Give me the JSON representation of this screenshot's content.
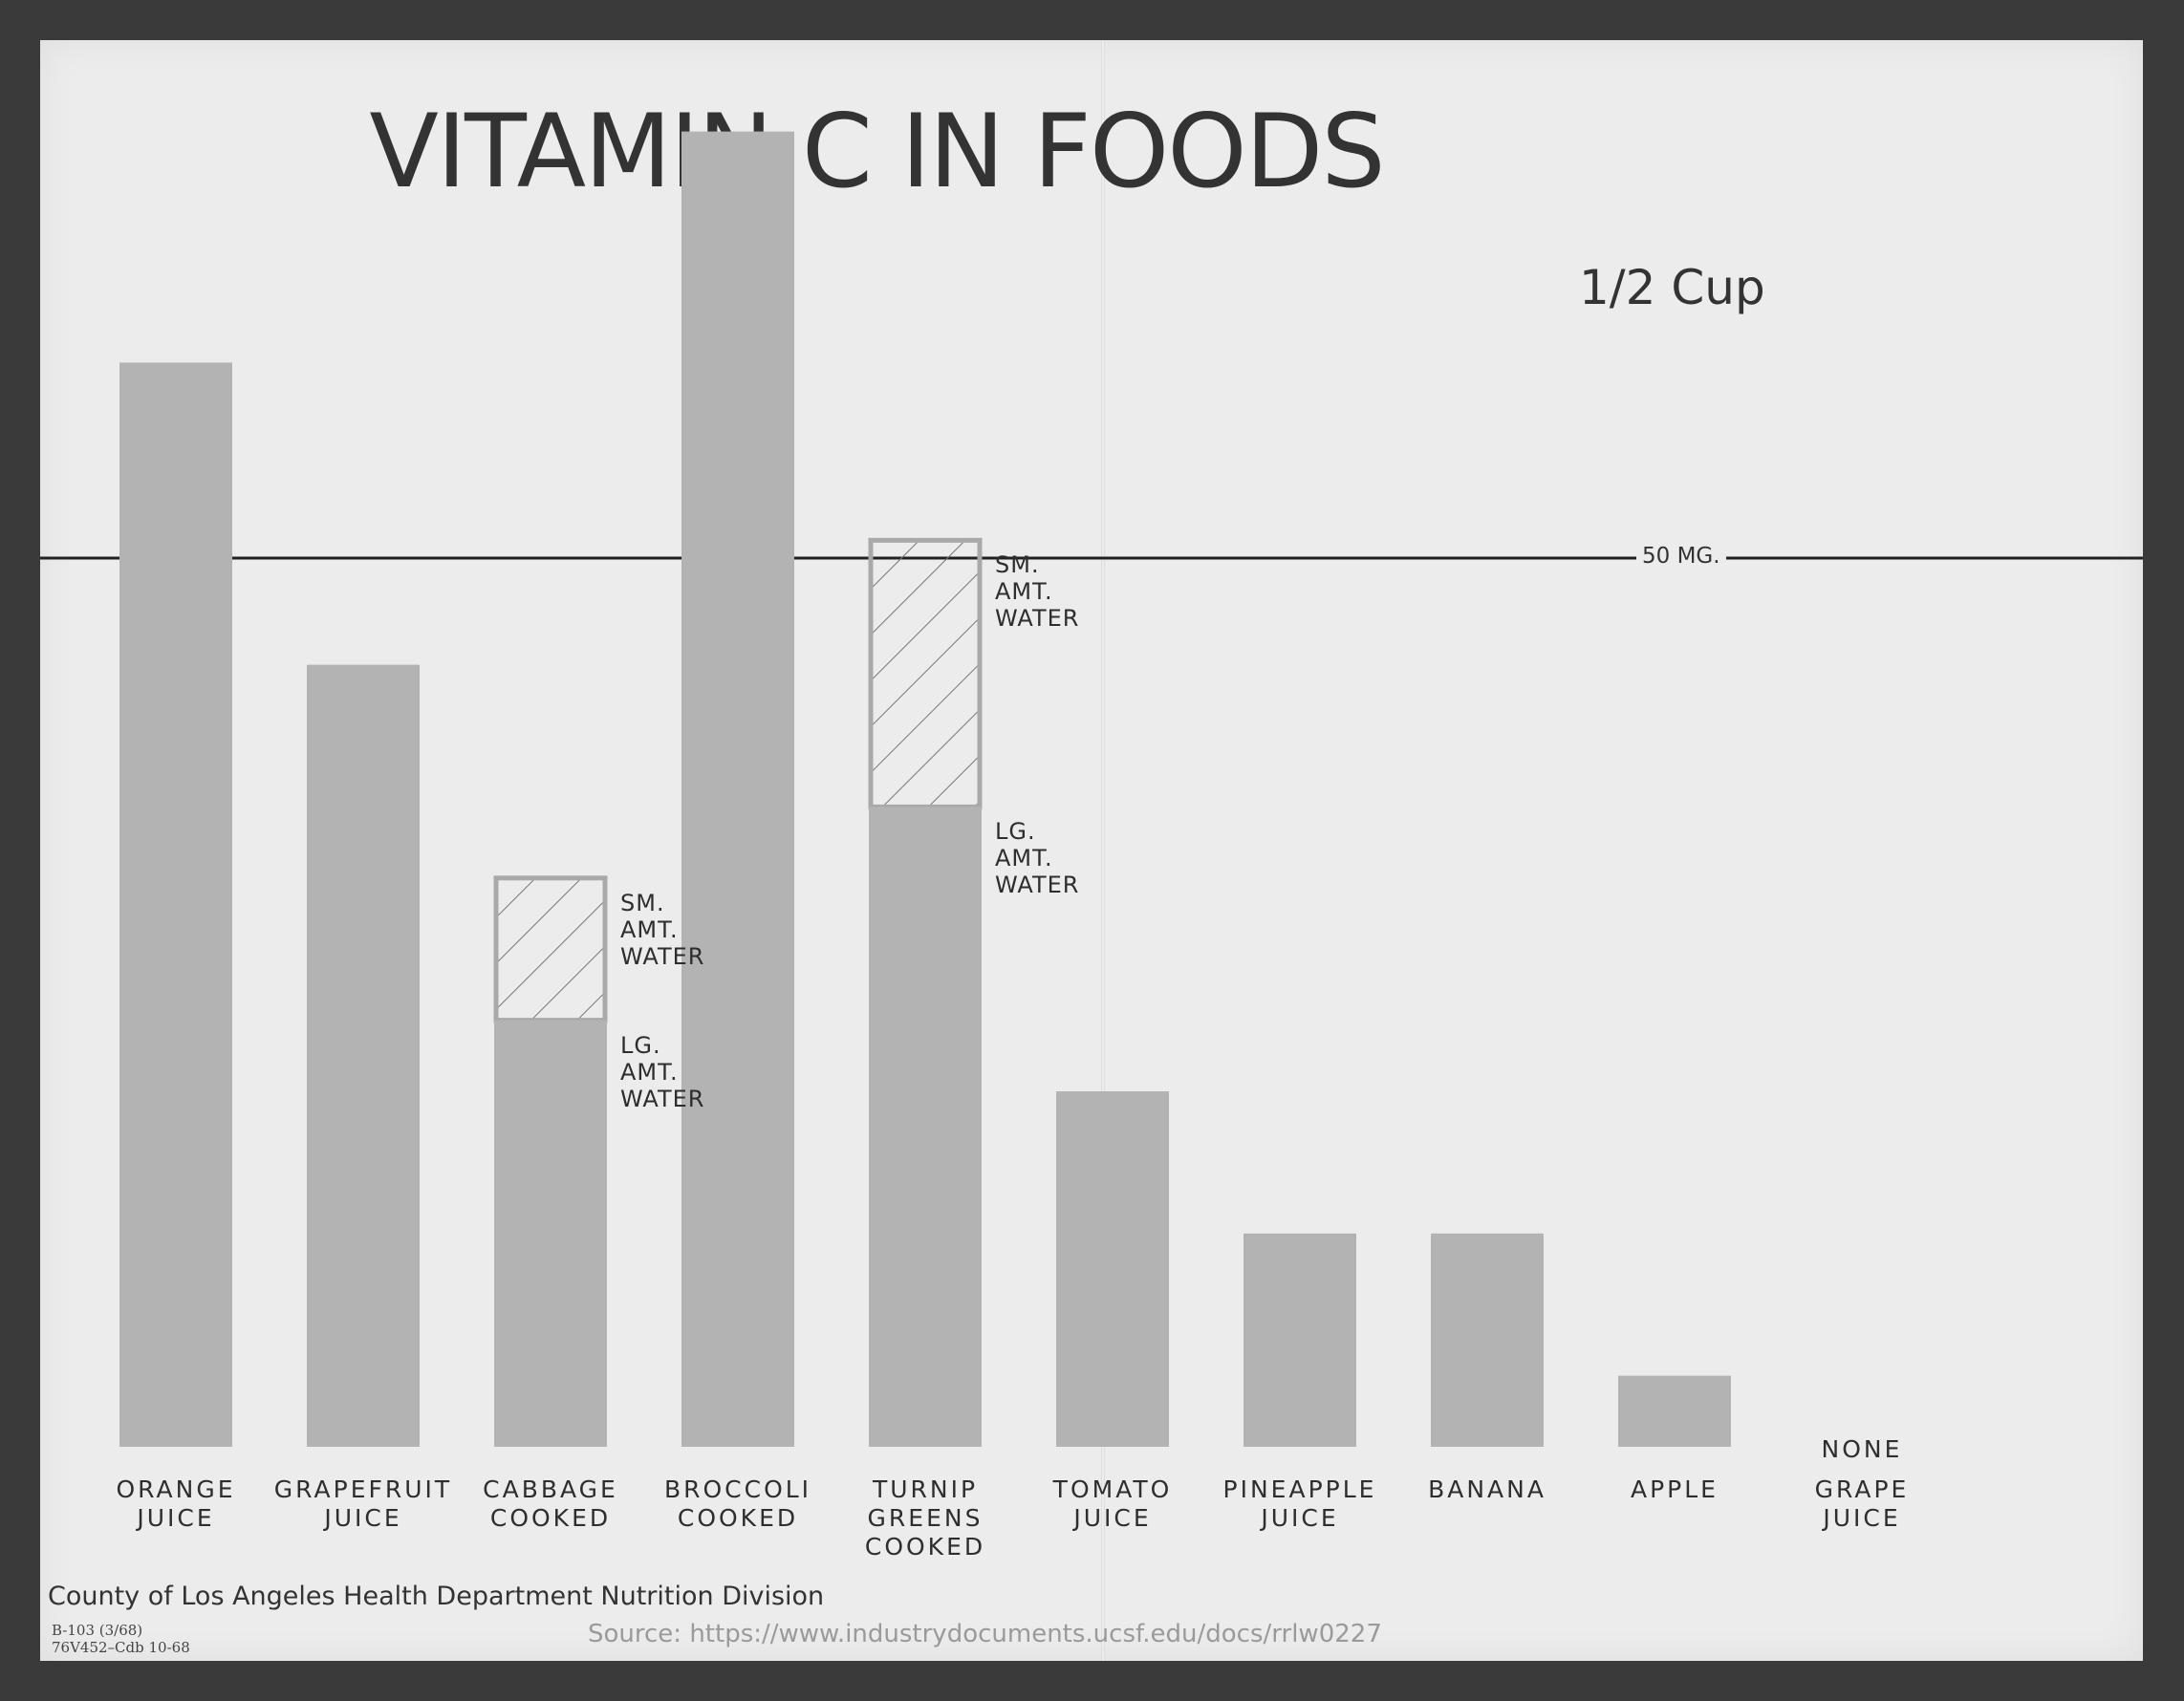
{
  "title": "VITAMIN C IN FOODS",
  "subtitle": "1/2 Cup",
  "reference_label": "50 MG.",
  "footer": "County of Los Angeles Health Department Nutrition Division",
  "codes": [
    "B-103 (3/68)",
    "76V452–Cdb 10-68"
  ],
  "source": "Source: https://www.industrydocuments.ucsf.edu/docs/rrlw0227",
  "colors": {
    "bar": "#b3b3b3",
    "line": "#222222",
    "text": "#333333"
  },
  "chart_data": {
    "type": "bar",
    "unit": "mg",
    "reference_line": 50,
    "grid": false,
    "axes_visible": false,
    "categories": [
      "ORANGE JUICE",
      "GRAPEFRUIT JUICE",
      "CABBAGE COOKED",
      "BROCCOLI COOKED",
      "TURNIP GREENS COOKED",
      "TOMATO JUICE",
      "PINEAPPLE JUICE",
      "BANANA",
      "APPLE",
      "GRAPE JUICE"
    ],
    "category_labels": [
      "ORANGE\nJUICE",
      "GRAPEFRUIT\nJUICE",
      "CABBAGE\nCOOKED",
      "BROCCOLI\nCOOKED",
      "TURNIP GREENS\nCOOKED",
      "TOMATO\nJUICE",
      "PINEAPPLE\nJUICE",
      "BANANA",
      "APPLE",
      "GRAPE\nJUICE"
    ],
    "values": [
      61,
      44,
      24,
      74,
      36,
      20,
      12,
      12,
      4,
      0
    ],
    "hatched_extension": [
      null,
      null,
      32,
      null,
      51,
      null,
      null,
      null,
      null,
      null
    ],
    "none_label": "NONE",
    "notes": {
      "small_water": "SM.\nAMT.\nWATER",
      "large_water": "LG.\nAMT.\nWATER"
    }
  }
}
